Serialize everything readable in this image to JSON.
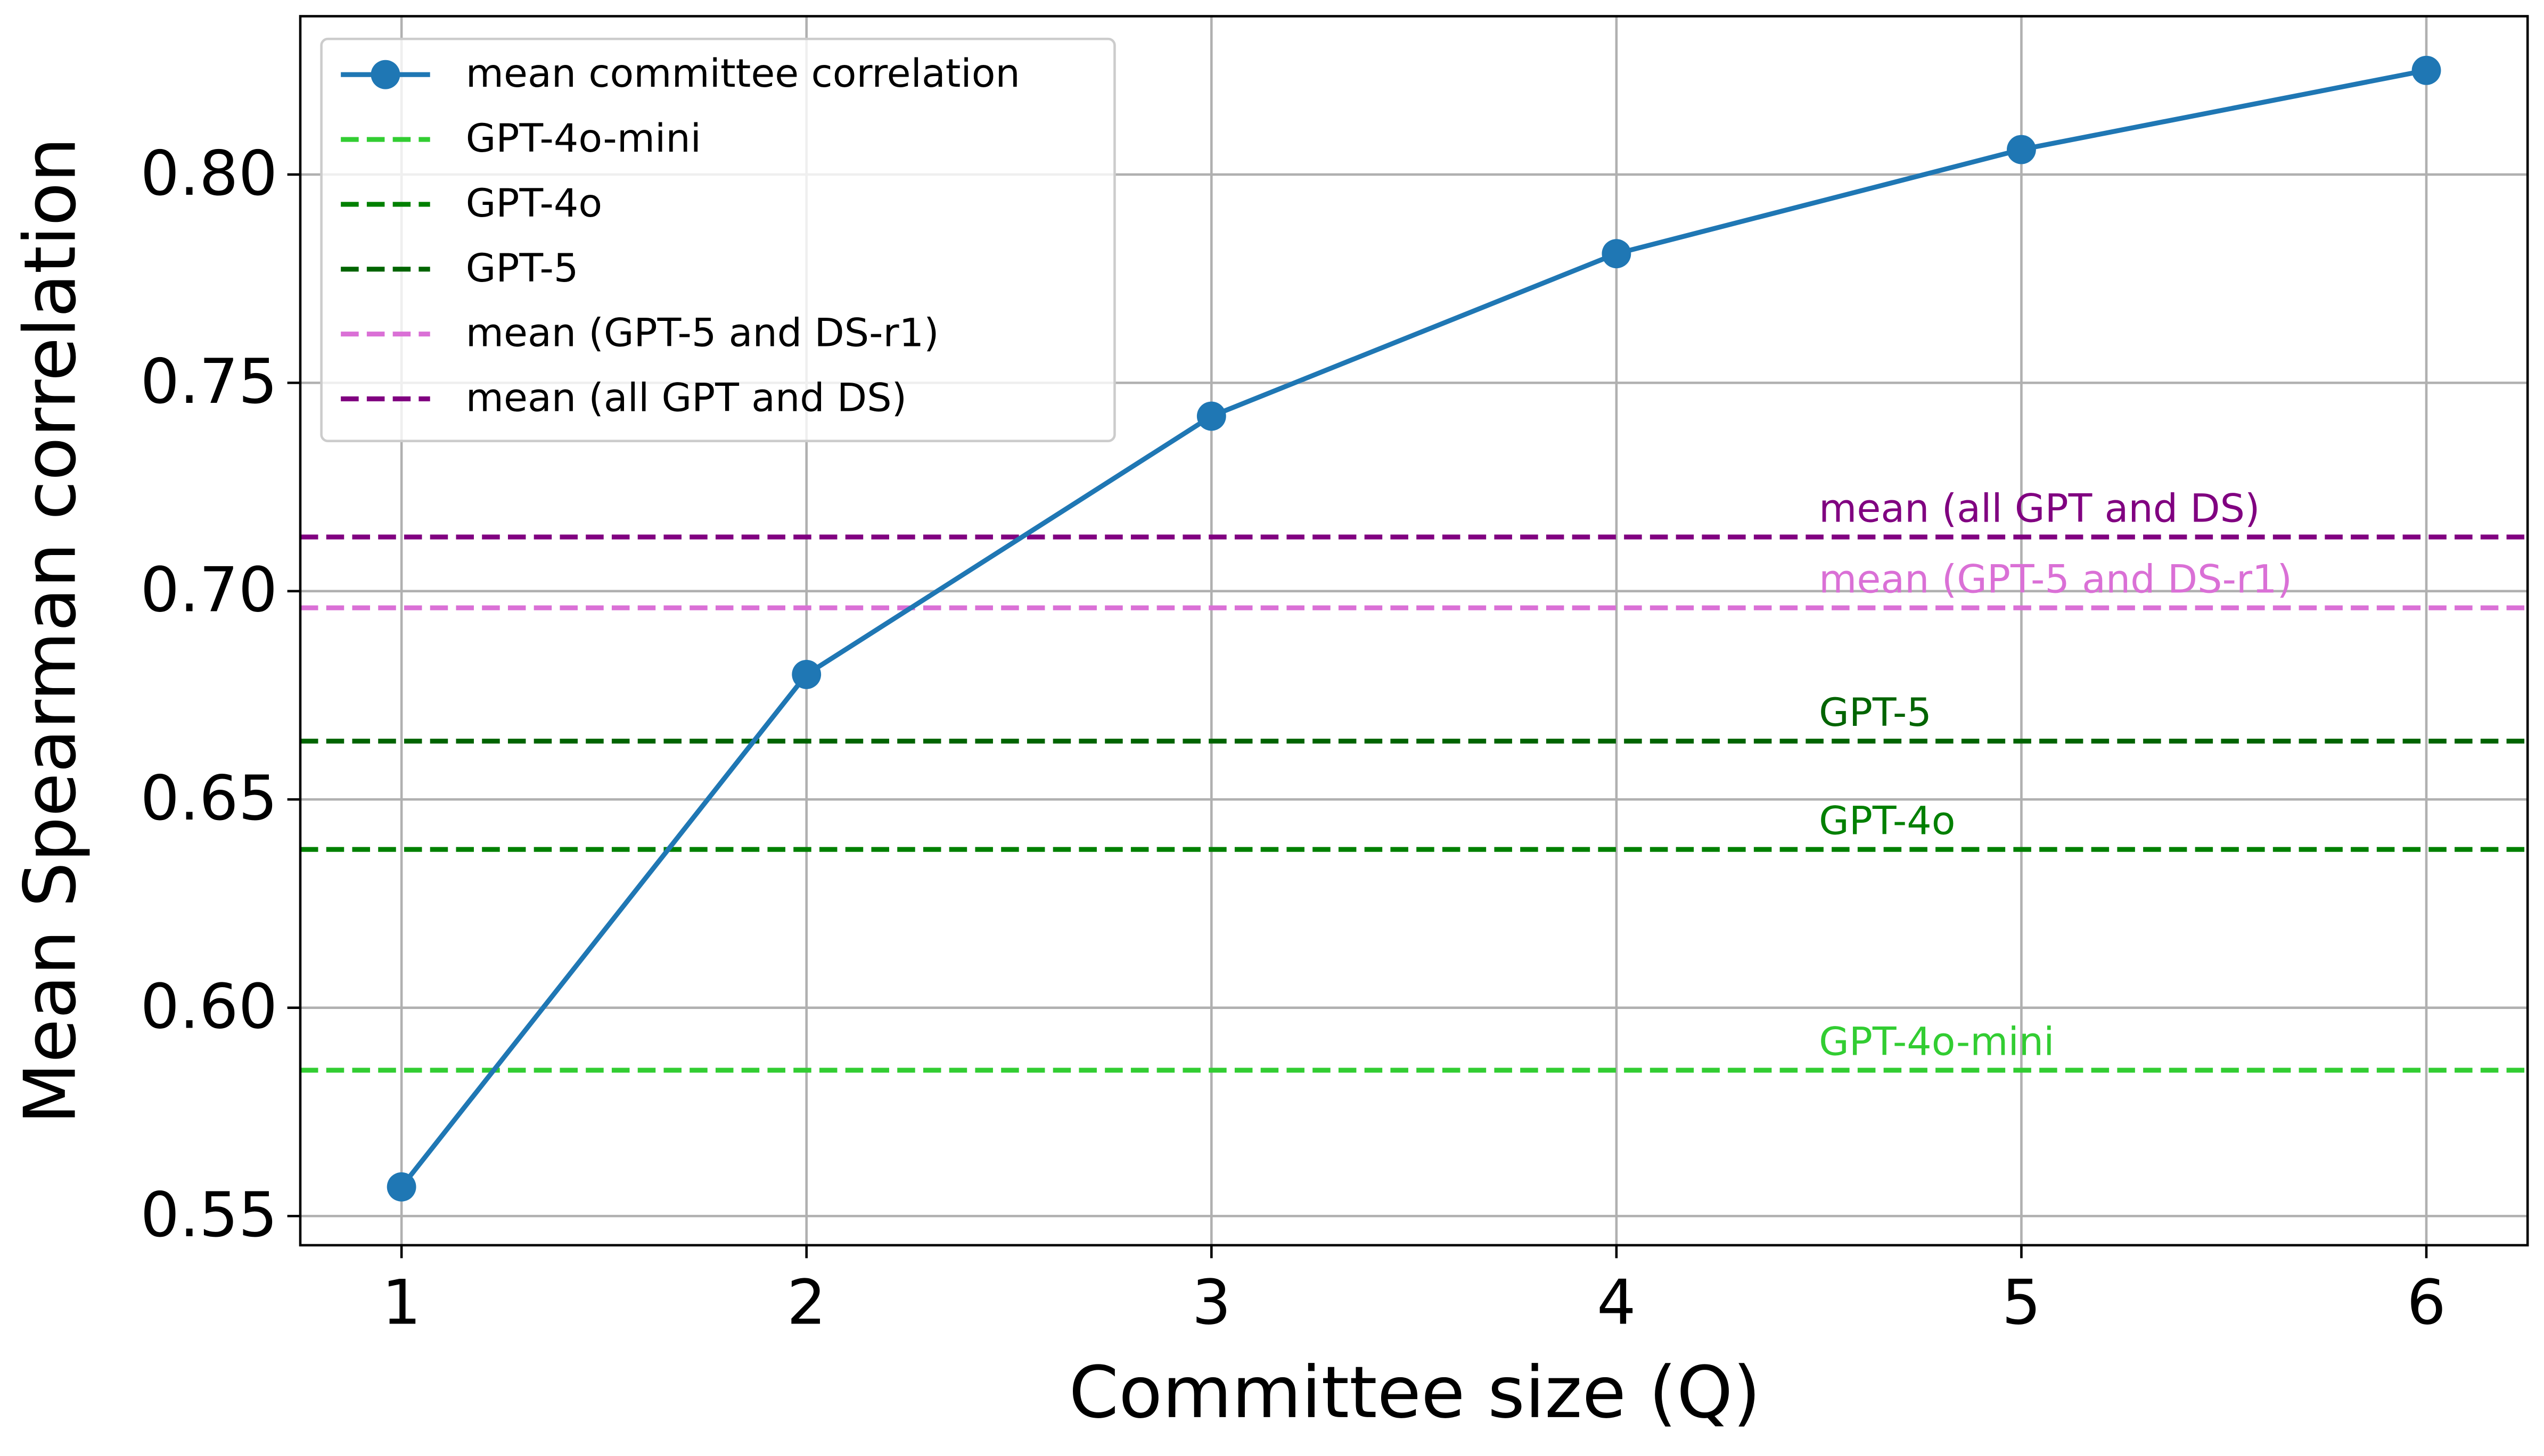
{
  "chart_data": {
    "type": "line",
    "xlabel": "Committee size (Q)",
    "ylabel": "Mean Spearman correlation",
    "x": [
      1,
      2,
      3,
      4,
      5,
      6
    ],
    "series": [
      {
        "name": "mean committee correlation",
        "color": "#1f77b4",
        "values": [
          0.557,
          0.68,
          0.742,
          0.781,
          0.806,
          0.825
        ]
      }
    ],
    "reference_lines": [
      {
        "name": "GPT-4o-mini",
        "value": 0.585,
        "color": "#32cd32"
      },
      {
        "name": "GPT-4o",
        "value": 0.638,
        "color": "#008000"
      },
      {
        "name": "GPT-5",
        "value": 0.664,
        "color": "#006400"
      },
      {
        "name": "mean (GPT-5 and DS-r1)",
        "value": 0.696,
        "color": "#da70d6"
      },
      {
        "name": "mean (all GPT and DS)",
        "value": 0.713,
        "color": "#800080"
      }
    ],
    "reference_label_x": 4.5,
    "xlim": [
      0.75,
      6.25
    ],
    "xticks": [
      1,
      2,
      3,
      4,
      5,
      6
    ],
    "ylim": [
      0.543,
      0.838
    ],
    "yticks": [
      {
        "value": 0.55,
        "label": "0.55"
      },
      {
        "value": 0.6,
        "label": "0.60"
      },
      {
        "value": 0.65,
        "label": "0.65"
      },
      {
        "value": 0.7,
        "label": "0.70"
      },
      {
        "value": 0.75,
        "label": "0.75"
      },
      {
        "value": 0.8,
        "label": "0.80"
      }
    ],
    "grid": true,
    "legend": "upper left"
  }
}
